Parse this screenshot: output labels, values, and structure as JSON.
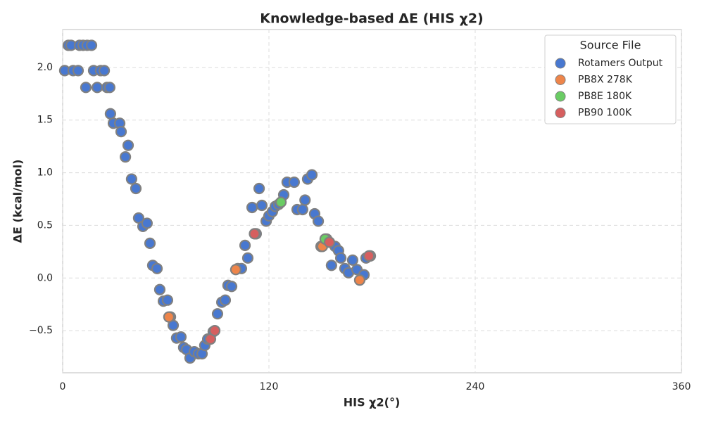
{
  "chart_data": {
    "type": "scatter",
    "title": "Knowledge-based ΔE (HIS χ2)",
    "x_label": "HIS χ2(°)",
    "y_label": "ΔE (kcal/mol)",
    "legend_title": "Source File",
    "legend_position": "upper right",
    "grid": true,
    "xlim": [
      0,
      360
    ],
    "xticks": [
      0,
      120,
      240,
      360
    ],
    "ylim": [
      -0.9,
      2.36
    ],
    "yticks": [
      {
        "value": -0.5,
        "label": "−0.5"
      },
      {
        "value": 0,
        "label": "0.0"
      },
      0.5,
      {
        "value": 1,
        "label": "1.0"
      },
      1.5,
      {
        "value": 2,
        "label": "2.0"
      }
    ],
    "series": [
      {
        "name": "Rotamers Output",
        "color": "#4878d0",
        "x": [
          1.2,
          3.3,
          4.9,
          6.1,
          9.0,
          9.8,
          11.9,
          13.5,
          14.3,
          16.8,
          18.0,
          20.1,
          22.1,
          24.2,
          25.8,
          27.4,
          27.8,
          29.5,
          33.2,
          34.0,
          36.5,
          38.1,
          40.1,
          42.6,
          44.2,
          46.7,
          49.1,
          50.8,
          52.4,
          54.9,
          56.5,
          58.6,
          61.0,
          62.7,
          64.3,
          66.3,
          68.8,
          70.4,
          72.1,
          74.1,
          76.6,
          79.0,
          81.1,
          82.7,
          84.4,
          87.6,
          90.1,
          92.6,
          94.6,
          96.2,
          98.3,
          101.9,
          104.0,
          106.1,
          107.7,
          110.2,
          112.6,
          114.3,
          115.9,
          118.4,
          120.0,
          122.0,
          123.7,
          125.7,
          128.6,
          130.6,
          134.7,
          136.4,
          139.6,
          141.0,
          142.5,
          145.0,
          146.6,
          148.7,
          150.3,
          153.6,
          156.4,
          158.5,
          160.5,
          161.8,
          164.2,
          166.3,
          168.7,
          171.2,
          175.3,
          176.5,
          179.0
        ],
        "y": [
          1.97,
          2.21,
          2.21,
          1.97,
          1.97,
          2.21,
          2.21,
          1.81,
          2.21,
          2.21,
          1.97,
          1.81,
          1.97,
          1.97,
          1.81,
          1.81,
          1.56,
          1.47,
          1.47,
          1.39,
          1.15,
          1.26,
          0.94,
          0.85,
          0.57,
          0.49,
          0.52,
          0.33,
          0.12,
          0.09,
          -0.11,
          -0.22,
          -0.21,
          -0.37,
          -0.45,
          -0.57,
          -0.56,
          -0.66,
          -0.68,
          -0.76,
          -0.7,
          -0.72,
          -0.72,
          -0.64,
          -0.58,
          -0.51,
          -0.34,
          -0.23,
          -0.21,
          -0.07,
          -0.08,
          0.09,
          0.09,
          0.31,
          0.19,
          0.67,
          0.42,
          0.85,
          0.69,
          0.54,
          0.59,
          0.63,
          0.68,
          0.7,
          0.79,
          0.91,
          0.91,
          0.65,
          0.65,
          0.74,
          0.94,
          0.98,
          0.61,
          0.54,
          0.3,
          0.37,
          0.12,
          0.3,
          0.26,
          0.19,
          0.09,
          0.05,
          0.17,
          0.08,
          0.03,
          0.19,
          0.21
        ]
      },
      {
        "name": "PB8X 278K",
        "color": "#ee854a",
        "x": [
          61.8,
          100.7,
          151.1,
          172.8
        ],
        "y": [
          -0.37,
          0.08,
          0.3,
          -0.02
        ]
      },
      {
        "name": "PB8E 180K",
        "color": "#6acc64",
        "x": [
          127.0,
          152.7
        ],
        "y": [
          0.72,
          0.37
        ]
      },
      {
        "name": "PB90 100K",
        "color": "#d65f5f",
        "x": [
          86.0,
          88.5,
          111.6,
          155.2,
          178.2
        ],
        "y": [
          -0.58,
          -0.5,
          0.42,
          0.34,
          0.21
        ]
      }
    ]
  }
}
